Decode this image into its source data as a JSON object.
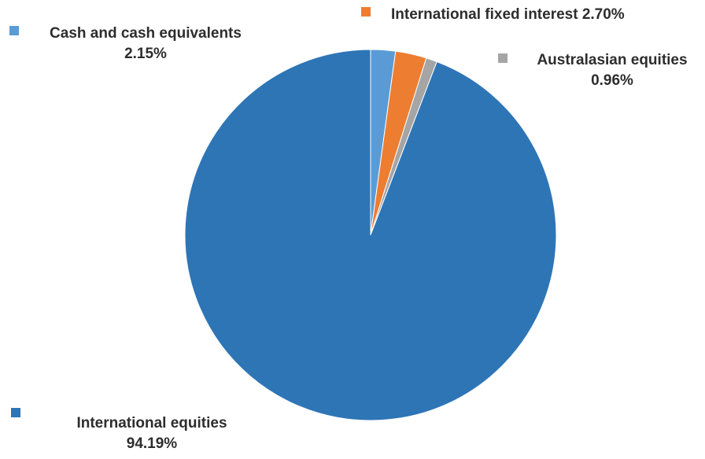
{
  "chart_data": {
    "type": "pie",
    "title": "",
    "start_angle_deg": 0,
    "direction": "clockwise",
    "slices": [
      {
        "label": "Cash and cash equivalents",
        "value": 2.15,
        "value_label": "2.15%",
        "color": "#5b9bd5"
      },
      {
        "label": "International fixed interest",
        "value": 2.7,
        "value_label": "2.70%",
        "color": "#ed7d31"
      },
      {
        "label": "Australasian equities",
        "value": 0.96,
        "value_label": "0.96%",
        "color": "#a5a5a5"
      },
      {
        "label": "International equities",
        "value": 94.19,
        "value_label": "94.19%",
        "color": "#2e75b6"
      }
    ]
  }
}
